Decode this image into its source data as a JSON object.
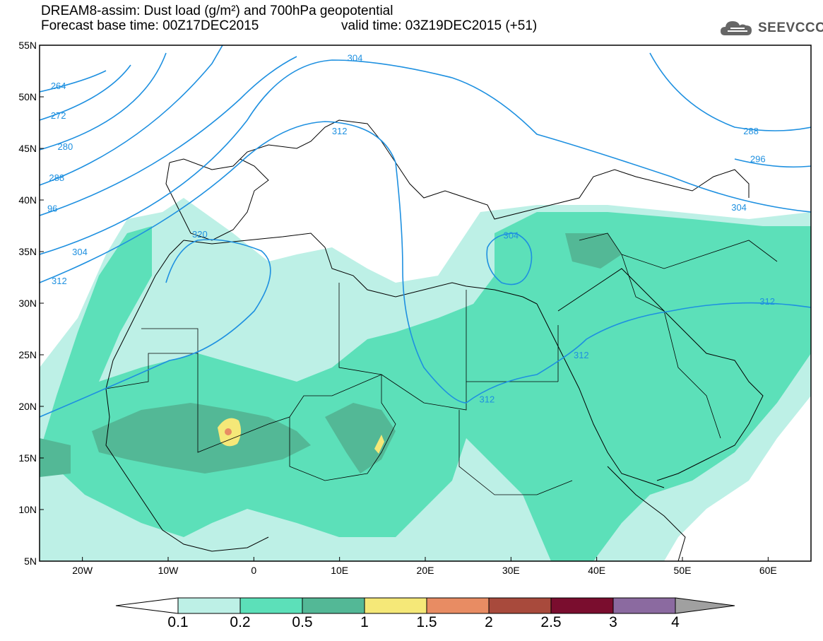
{
  "header": {
    "title_line1": "DREAM8-assim: Dust load (g/m²) and 700hPa geopotential",
    "forecast_base": "Forecast base time: 00Z17DEC2015",
    "valid_time": "valid time: 03Z19DEC2015 (+51)",
    "logo_text": "SEEVCCC",
    "logo_icon": "cloud-logo-icon"
  },
  "axes": {
    "lat_labels": [
      "55N",
      "50N",
      "45N",
      "40N",
      "35N",
      "30N",
      "25N",
      "20N",
      "15N",
      "10N",
      "5N"
    ],
    "lon_labels": [
      "20W",
      "10W",
      "0",
      "10E",
      "20E",
      "30E",
      "40E",
      "50E",
      "60E"
    ]
  },
  "contour_labels": [
    {
      "text": "304",
      "lon": 11.8,
      "lat": 53.6
    },
    {
      "text": "312",
      "lon": 10.0,
      "lat": 46.5
    },
    {
      "text": "264",
      "lon": -22.8,
      "lat": 50.9
    },
    {
      "text": "272",
      "lon": -22.8,
      "lat": 48.0
    },
    {
      "text": "280",
      "lon": -22.0,
      "lat": 45.0
    },
    {
      "text": "288",
      "lon": -23.0,
      "lat": 42.0
    },
    {
      "text": "96",
      "lon": -23.5,
      "lat": 39.0
    },
    {
      "text": "304",
      "lon": -20.3,
      "lat": 34.8
    },
    {
      "text": "312",
      "lon": -22.7,
      "lat": 32.0
    },
    {
      "text": "320",
      "lon": -6.3,
      "lat": 36.5
    },
    {
      "text": "304",
      "lon": 30.0,
      "lat": 36.4
    },
    {
      "text": "288",
      "lon": 58.0,
      "lat": 46.5
    },
    {
      "text": "296",
      "lon": 58.8,
      "lat": 43.8
    },
    {
      "text": "304",
      "lon": 56.6,
      "lat": 39.1
    },
    {
      "text": "312",
      "lon": 59.9,
      "lat": 30.0
    },
    {
      "text": "312",
      "lon": 38.2,
      "lat": 24.8
    },
    {
      "text": "312",
      "lon": 27.2,
      "lat": 20.5
    }
  ],
  "colorbar": {
    "labels": [
      "0.1",
      "0.2",
      "0.5",
      "1",
      "1.5",
      "2",
      "2.5",
      "3",
      "4"
    ],
    "colors": [
      "#bdf0e6",
      "#5ce0b9",
      "#53b896",
      "#f5e878",
      "#e88c63",
      "#a84a3c",
      "#7a0d2e",
      "#8b6aa0"
    ],
    "under_color": "#ffffff",
    "over_color": "#a0a0a0"
  },
  "legend_colors": {
    "contour": "#1e90e0",
    "coastline": "#000000"
  }
}
